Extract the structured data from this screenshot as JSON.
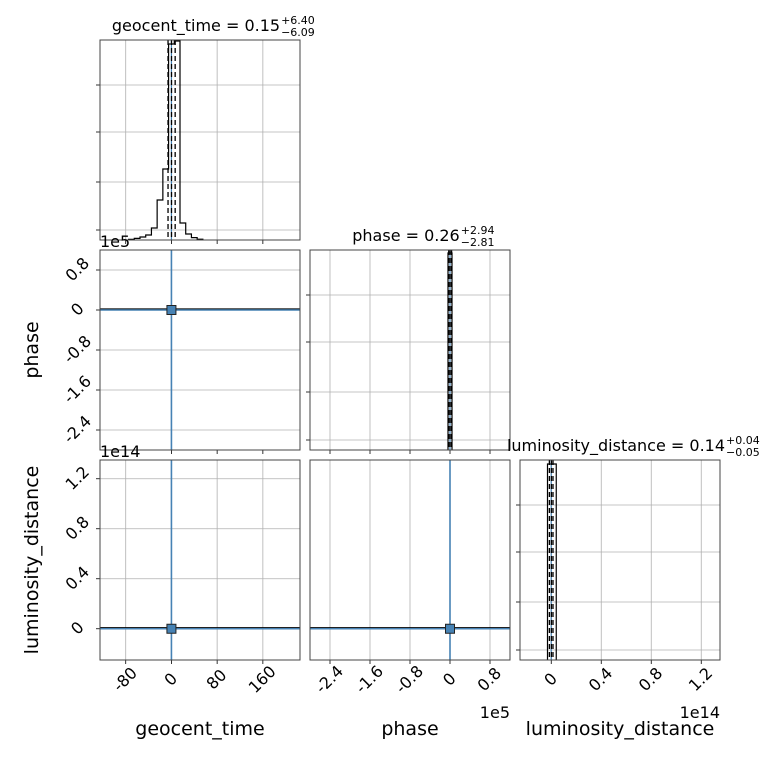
{
  "chart_data": {
    "type": "corner",
    "parameters": [
      "geocent_time",
      "phase",
      "luminosity_distance"
    ],
    "panels": [
      {
        "id": "geocent_time-hist",
        "kind": "histogram",
        "title_name": "geocent_time",
        "title_value": "0.15",
        "title_plus": "+6.40",
        "title_minus": "−6.09",
        "xlim": [
          -125,
          225
        ],
        "ylim": [
          0,
          1
        ],
        "bins": [
          {
            "x0": -75,
            "x1": -65,
            "h": 0.003
          },
          {
            "x0": -65,
            "x1": -55,
            "h": 0.008
          },
          {
            "x0": -55,
            "x1": -45,
            "h": 0.015
          },
          {
            "x0": -45,
            "x1": -35,
            "h": 0.025
          },
          {
            "x0": -35,
            "x1": -25,
            "h": 0.06
          },
          {
            "x0": -25,
            "x1": -15,
            "h": 0.2
          },
          {
            "x0": -15,
            "x1": -5,
            "h": 0.355
          },
          {
            "x0": -5,
            "x1": 5,
            "h": 0.98
          },
          {
            "x0": 5,
            "x1": 15,
            "h": 0.995
          },
          {
            "x0": 15,
            "x1": 25,
            "h": 0.085
          },
          {
            "x0": 25,
            "x1": 35,
            "h": 0.03
          },
          {
            "x0": 35,
            "x1": 45,
            "h": 0.012
          },
          {
            "x0": 45,
            "x1": 55,
            "h": 0.004
          }
        ],
        "quantiles": [
          -5.94,
          0.15,
          6.55
        ],
        "truth": 0
      },
      {
        "id": "phase-geocent_time",
        "kind": "2d",
        "xlim": [
          -125,
          225
        ],
        "ylim": [
          -280000,
          120000
        ],
        "yticks": [
          0.8,
          0.0,
          -0.8,
          -1.6,
          -2.4
        ],
        "yticks_at": [
          80000,
          0,
          -80000,
          -160000,
          -240000
        ],
        "yscale_label": "1e5",
        "ylabel": "phase",
        "point": [
          0,
          0
        ],
        "truth": [
          0,
          0
        ]
      },
      {
        "id": "phase-hist",
        "kind": "histogram",
        "title_name": "phase",
        "title_value": "0.26",
        "title_plus": "+2.94",
        "title_minus": "−2.81",
        "xlim": [
          -280000,
          120000
        ],
        "ylim": [
          0,
          1
        ],
        "bins": [
          {
            "x0": -4000,
            "x1": 4000,
            "h": 0.985
          }
        ],
        "quantiles": [
          -2.55,
          0.26,
          3.2
        ],
        "truth": 0
      },
      {
        "id": "luminosity_distance-geocent_time",
        "kind": "2d",
        "xlim": [
          -125,
          225
        ],
        "ylim": [
          -25000000000000.0,
          135000000000000.0
        ],
        "yticks": [
          1.2,
          0.8,
          0.4,
          0.0
        ],
        "yticks_at": [
          120000000000000.0,
          80000000000000.0,
          40000000000000.0,
          0
        ],
        "yscale_label": "1e14",
        "ylabel": "luminosity_distance",
        "xticks": [
          -80,
          0,
          80,
          160
        ],
        "xticks_at": [
          -80,
          0,
          80,
          160
        ],
        "xlabel": "geocent_time",
        "point": [
          0,
          0
        ],
        "truth": [
          0,
          0
        ]
      },
      {
        "id": "luminosity_distance-phase",
        "kind": "2d",
        "xlim": [
          -280000,
          120000
        ],
        "ylim": [
          -25000000000000.0,
          135000000000000.0
        ],
        "xticks": [
          -2.4,
          -1.6,
          -0.8,
          0.0,
          0.8
        ],
        "xticks_at": [
          -240000,
          -160000,
          -80000,
          0,
          80000
        ],
        "xscale_label": "1e5",
        "xlabel": "phase",
        "point": [
          0,
          0
        ],
        "truth": [
          0,
          0
        ]
      },
      {
        "id": "luminosity_distance-hist",
        "kind": "histogram",
        "title_name": "luminosity_distance",
        "title_value": "0.14",
        "title_plus": "+0.04",
        "title_minus": "−0.05",
        "xlim": [
          -25000000000000.0,
          135000000000000.0
        ],
        "ylim": [
          0,
          1
        ],
        "bins": [
          {
            "x0": -3000000000000.0,
            "x1": 0,
            "h": 0.98
          },
          {
            "x0": 0,
            "x1": 4000000000000.0,
            "h": 0.98
          }
        ],
        "xticks": [
          0.0,
          0.4,
          0.8,
          1.2
        ],
        "xticks_at": [
          0,
          40000000000000.0,
          80000000000000.0,
          120000000000000.0
        ],
        "xscale_label": "1e14",
        "xlabel": "luminosity_distance",
        "quantiles": [
          -1500000000000.0,
          0.14,
          1400000000000.0
        ],
        "truth": 0
      }
    ],
    "grid": true,
    "colors": {
      "hist": "#000000",
      "quantile": "#000000",
      "truth": "#4682b4",
      "grid": "#b0b0b0",
      "point": "#4682b4"
    }
  }
}
